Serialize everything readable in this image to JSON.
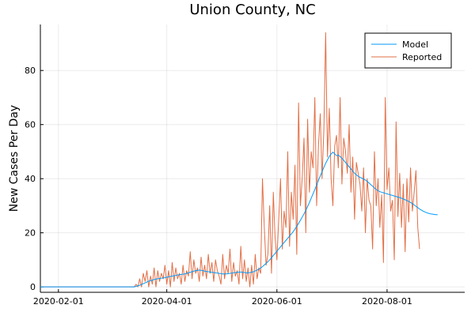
{
  "chart_data": {
    "type": "line",
    "title": "Union County, NC",
    "xlabel": "",
    "ylabel": "New Cases Per Day",
    "xlim": [
      "2020-01-22",
      "2020-09-13"
    ],
    "ylim": [
      -2,
      97
    ],
    "x_ticks": [
      "2020-02-01",
      "2020-04-01",
      "2020-06-01",
      "2020-08-01"
    ],
    "y_ticks": [
      0,
      20,
      40,
      60,
      80
    ],
    "grid": true,
    "legend_position": "top-right",
    "series": [
      {
        "name": "Model",
        "color": "#009AFA",
        "x_start": "2020-01-22",
        "values": [
          0,
          0,
          0,
          0,
          0,
          0,
          0,
          0,
          0,
          0,
          0,
          0,
          0,
          0,
          0,
          0,
          0,
          0,
          0,
          0,
          0,
          0,
          0,
          0,
          0,
          0,
          0,
          0,
          0,
          0,
          0,
          0,
          0,
          0,
          0,
          0,
          0,
          0,
          0,
          0,
          0,
          0,
          0,
          0,
          0,
          0,
          0,
          0,
          0,
          0,
          0,
          0,
          0,
          0.2,
          0.4,
          0.6,
          0.9,
          1.2,
          1.5,
          1.8,
          2.1,
          2.3,
          2.5,
          2.7,
          2.9,
          3.0,
          3.1,
          3.2,
          3.3,
          3.4,
          3.6,
          3.7,
          3.9,
          4.0,
          4.1,
          4.2,
          4.4,
          4.5,
          4.6,
          4.7,
          4.8,
          5.0,
          5.2,
          5.4,
          5.6,
          5.8,
          6.0,
          6.1,
          6.2,
          6.1,
          6.0,
          5.8,
          5.7,
          5.6,
          5.5,
          5.4,
          5.3,
          5.2,
          5.1,
          5.0,
          4.9,
          4.8,
          4.8,
          4.8,
          4.9,
          5.0,
          5.1,
          5.2,
          5.3,
          5.4,
          5.5,
          5.5,
          5.4,
          5.3,
          5.2,
          5.2,
          5.3,
          5.4,
          5.6,
          5.9,
          6.2,
          6.6,
          7.0,
          7.5,
          8.1,
          8.7,
          9.3,
          10.0,
          10.8,
          11.6,
          12.4,
          13.2,
          14.0,
          14.8,
          15.6,
          16.4,
          17.2,
          18.0,
          18.8,
          19.6,
          20.4,
          21.4,
          22.4,
          23.5,
          24.6,
          25.8,
          27.0,
          28.3,
          29.7,
          31.2,
          32.8,
          34.4,
          36.0,
          37.7,
          39.4,
          41.0,
          42.6,
          44.2,
          45.7,
          47.0,
          48.2,
          49.1,
          49.8,
          49.2,
          48.5,
          48.7,
          48.2,
          47.5,
          46.8,
          46.0,
          45.2,
          44.4,
          43.6,
          42.8,
          42.0,
          41.4,
          40.9,
          40.5,
          40.2,
          39.9,
          39.5,
          39.0,
          38.4,
          37.8,
          37.2,
          36.6,
          36.0,
          35.6,
          35.2,
          35.0,
          34.8,
          34.6,
          34.4,
          34.2,
          34.0,
          33.8,
          33.6,
          33.4,
          33.2,
          33.0,
          32.8,
          32.5,
          32.2,
          31.9,
          31.6,
          31.2,
          30.8,
          30.3,
          29.8,
          29.3,
          28.8,
          28.4,
          28.0,
          27.7,
          27.4,
          27.2,
          27.0,
          26.9,
          26.8,
          26.7,
          26.7
        ]
      },
      {
        "name": "Reported",
        "color": "#E26F46",
        "x_start": "2020-01-22",
        "values": [
          0,
          0,
          0,
          0,
          0,
          0,
          0,
          0,
          0,
          0,
          0,
          0,
          0,
          0,
          0,
          0,
          0,
          0,
          0,
          0,
          0,
          0,
          0,
          0,
          0,
          0,
          0,
          0,
          0,
          0,
          0,
          0,
          0,
          0,
          0,
          0,
          0,
          0,
          0,
          0,
          0,
          0,
          0,
          0,
          0,
          0,
          0,
          0,
          0,
          0,
          0,
          0,
          0,
          1,
          0,
          3,
          0,
          5,
          2,
          6,
          0,
          4,
          1,
          7,
          0,
          6,
          2,
          5,
          3,
          8,
          1,
          6,
          0,
          9,
          2,
          7,
          3,
          5,
          1,
          8,
          2,
          6,
          4,
          13,
          3,
          10,
          5,
          7,
          2,
          11,
          4,
          8,
          3,
          12,
          5,
          9,
          2,
          10,
          6,
          4,
          1,
          12,
          3,
          8,
          5,
          14,
          2,
          9,
          4,
          6,
          1,
          15,
          3,
          10,
          2,
          7,
          0,
          8,
          1,
          12,
          3,
          7,
          5,
          40,
          22,
          8,
          12,
          30,
          5,
          35,
          18,
          10,
          25,
          40,
          14,
          28,
          22,
          50,
          15,
          35,
          25,
          45,
          12,
          68,
          30,
          40,
          55,
          20,
          62,
          35,
          50,
          44,
          70,
          30,
          52,
          64,
          40,
          58,
          94,
          48,
          66,
          40,
          30,
          52,
          56,
          44,
          70,
          38,
          55,
          50,
          42,
          60,
          35,
          48,
          25,
          46,
          42,
          38,
          28,
          44,
          20,
          40,
          32,
          30,
          14,
          50,
          30,
          40,
          22,
          34,
          9,
          70,
          36,
          44,
          28,
          32,
          10,
          61,
          26,
          42,
          22,
          38,
          13,
          40,
          24,
          44,
          28,
          35,
          43,
          22,
          14
        ]
      }
    ]
  }
}
